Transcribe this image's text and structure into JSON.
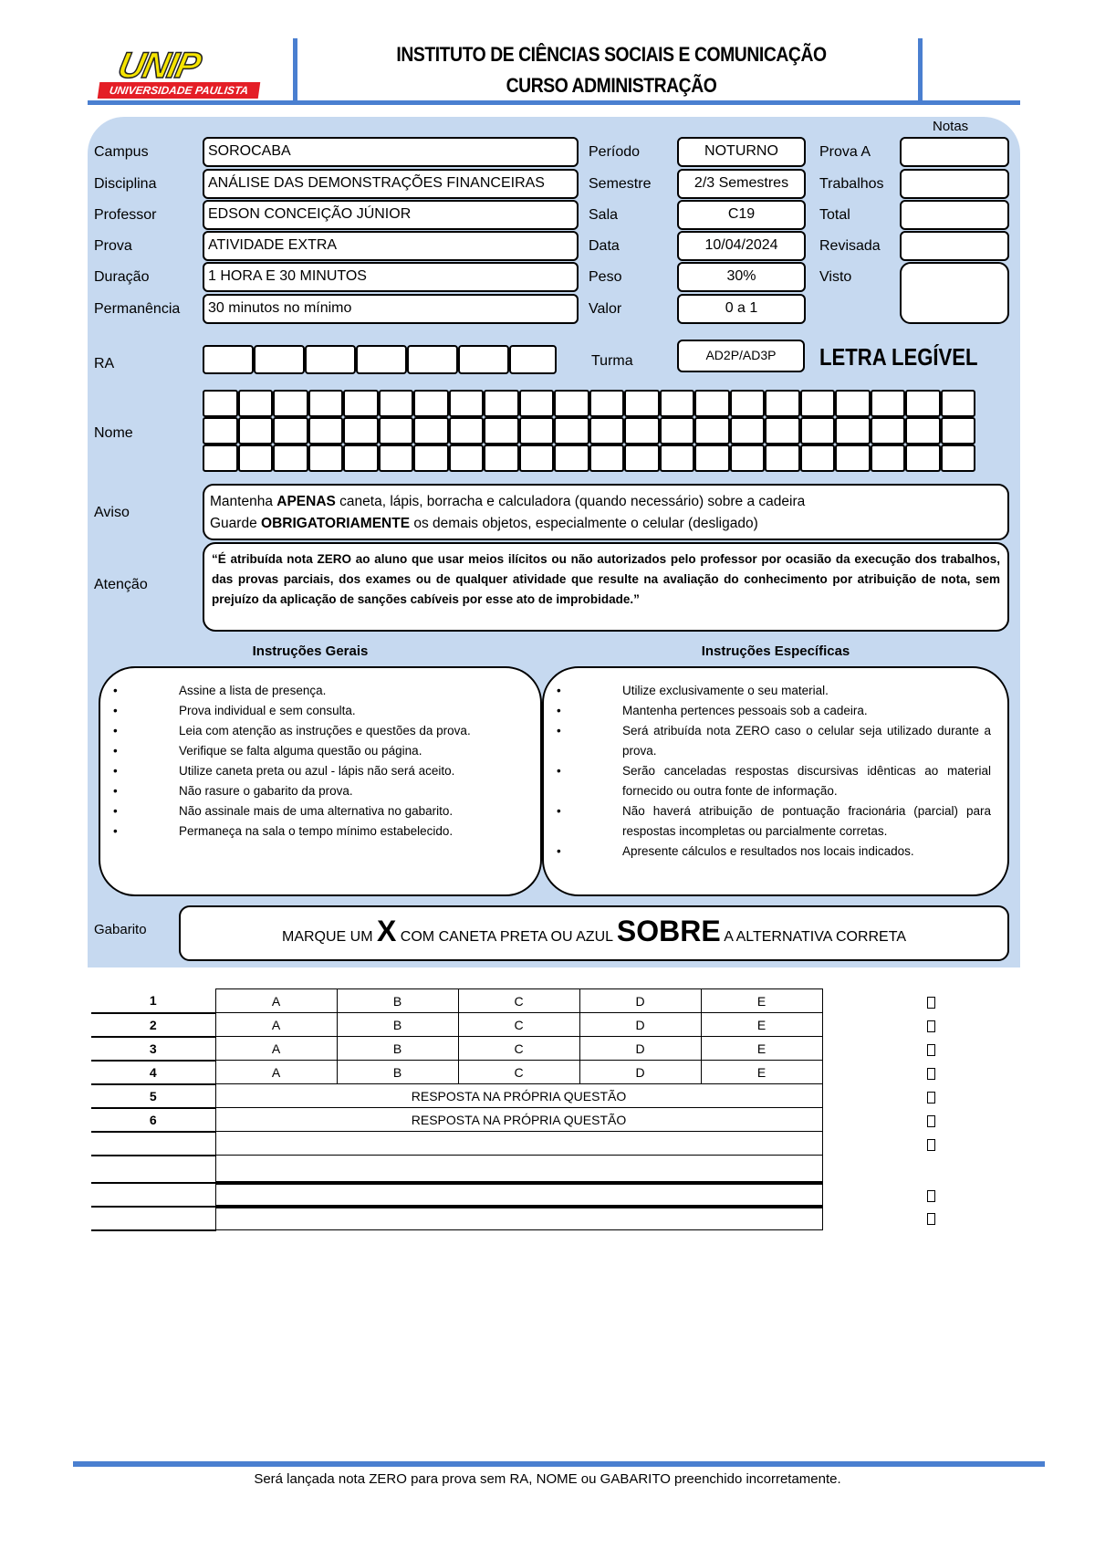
{
  "header": {
    "logo_text": "UNIP",
    "logo_subtitle": "UNIVERSIDADE PAULISTA",
    "title1": "INSTITUTO DE CIÊNCIAS SOCIAIS E COMUNICAÇÃO",
    "title2": "CURSO ADMINISTRAÇÃO"
  },
  "notas_label": "Notas",
  "fields": [
    {
      "label": "Campus",
      "value": "SOROCABA",
      "label2": "Período",
      "value2": "NOTURNO",
      "label3": "Prova A"
    },
    {
      "label": "Disciplina",
      "value": "ANÁLISE DAS DEMONSTRAÇÕES FINANCEIRAS",
      "label2": "Semestre",
      "value2": "2/3 Semestres",
      "label3": "Trabalhos"
    },
    {
      "label": "Professor",
      "value": "EDSON CONCEIÇÃO JÚNIOR",
      "label2": "Sala",
      "value2": "C19",
      "label3": "Total"
    },
    {
      "label": "Prova",
      "value": "ATIVIDADE EXTRA",
      "label2": "Data",
      "value2": "10/04/2024",
      "label3": "Revisada"
    },
    {
      "label": "Duração",
      "value": "1 HORA E 30 MINUTOS",
      "label2": "Peso",
      "value2": "30%",
      "label3": "Visto"
    },
    {
      "label": "Permanência",
      "value": "30 minutos no mínimo",
      "label2": "Valor",
      "value2": "0 a 1"
    }
  ],
  "ra_label": "RA",
  "turma_label": "Turma",
  "turma_value": "AD2P/AD3P",
  "letra_legivel": "LETRA LEGÍVEL",
  "nome_label": "Nome",
  "aviso": {
    "label": "Aviso",
    "l1a": "Mantenha ",
    "l1b": "APENAS",
    "l1c": " caneta, lápis, borracha e calculadora (quando necessário) sobre a cadeira",
    "l2a": "Guarde ",
    "l2b": "OBRIGATORIAMENTE",
    "l2c": " os demais objetos, especialmente o celular (desligado)"
  },
  "atencao": {
    "label": "Atenção",
    "text": "“É atribuída nota ZERO ao aluno que usar meios ilícitos ou não autorizados pelo professor por ocasião da execução dos trabalhos, das provas parciais, dos exames ou de qualquer atividade que resulte na avaliação do conhecimento por atribuição de nota, sem prejuízo da aplicação de sanções cabíveis por esse ato de improbidade.”"
  },
  "instrucoes_gerais": {
    "title": "Instruções Gerais",
    "items": [
      "Assine a lista de presença.",
      "Prova individual e sem consulta.",
      "Leia com atenção as instruções e questões da prova.",
      "Verifique se falta alguma questão ou página.",
      "Utilize caneta preta ou azul - lápis não será aceito.",
      "Não rasure o gabarito da prova.",
      "Não assinale mais de uma alternativa no gabarito.",
      "Permaneça na sala o tempo mínimo estabelecido."
    ]
  },
  "instrucoes_especificas": {
    "title": "Instruções Específicas",
    "items": [
      "Utilize exclusivamente o seu material.",
      "Mantenha pertences pessoais sob a cadeira.",
      "Será atribuída nota ZERO caso o celular seja utilizado durante a prova.",
      "Serão canceladas respostas discursivas idênticas ao material fornecido ou outra fonte de informação.",
      "Não haverá atribuição de pontuação fracionária (parcial) para respostas incompletas ou parcialmente corretas.",
      "Apresente cálculos e resultados nos locais indicados."
    ]
  },
  "gabarito": {
    "label": "Gabarito",
    "t1": "MARQUE UM ",
    "t2": "X",
    "t3": " COM CANETA PRETA OU AZUL ",
    "t4": "SOBRE",
    "t5": " A ALTERNATIVA CORRETA"
  },
  "answers": {
    "options": [
      "A",
      "B",
      "C",
      "D",
      "E"
    ],
    "rows": [
      {
        "q": "1",
        "type": "options"
      },
      {
        "q": "2",
        "type": "options"
      },
      {
        "q": "3",
        "type": "options"
      },
      {
        "q": "4",
        "type": "options"
      },
      {
        "q": "5",
        "type": "text",
        "text": "RESPOSTA NA PRÓPRIA QUESTÃO"
      },
      {
        "q": "6",
        "type": "text",
        "text": "RESPOSTA NA PRÓPRIA QUESTÃO"
      }
    ]
  },
  "footer": "Será lançada nota ZERO para prova sem RA, NOME ou GABARITO preenchido incorretamente."
}
